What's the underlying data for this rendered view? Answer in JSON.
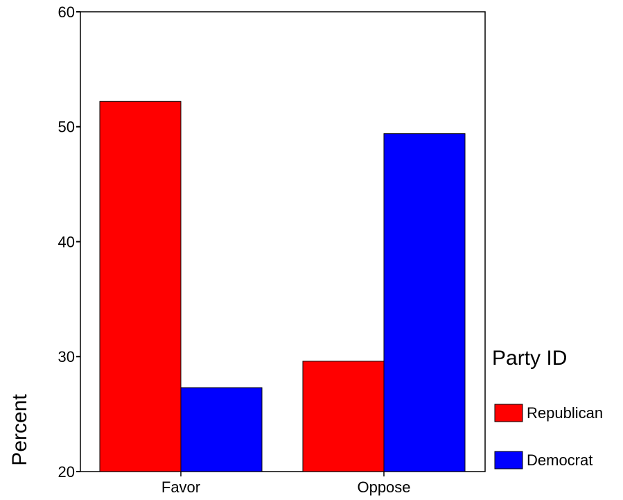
{
  "chart_data": {
    "type": "bar",
    "title": "",
    "xlabel": "",
    "ylabel": "Percent",
    "ylim": [
      20,
      60
    ],
    "yticks": [
      "20",
      "30",
      "40",
      "50",
      "60"
    ],
    "categories": [
      "Favor",
      "Oppose"
    ],
    "series": [
      {
        "name": "Republican",
        "color": "#ff0000",
        "values": [
          52.2,
          29.6
        ]
      },
      {
        "name": "Democrat",
        "color": "#0000ff",
        "values": [
          27.3,
          49.4
        ]
      }
    ],
    "legend": {
      "title": "Party ID",
      "placement": "right"
    },
    "grid": false
  }
}
